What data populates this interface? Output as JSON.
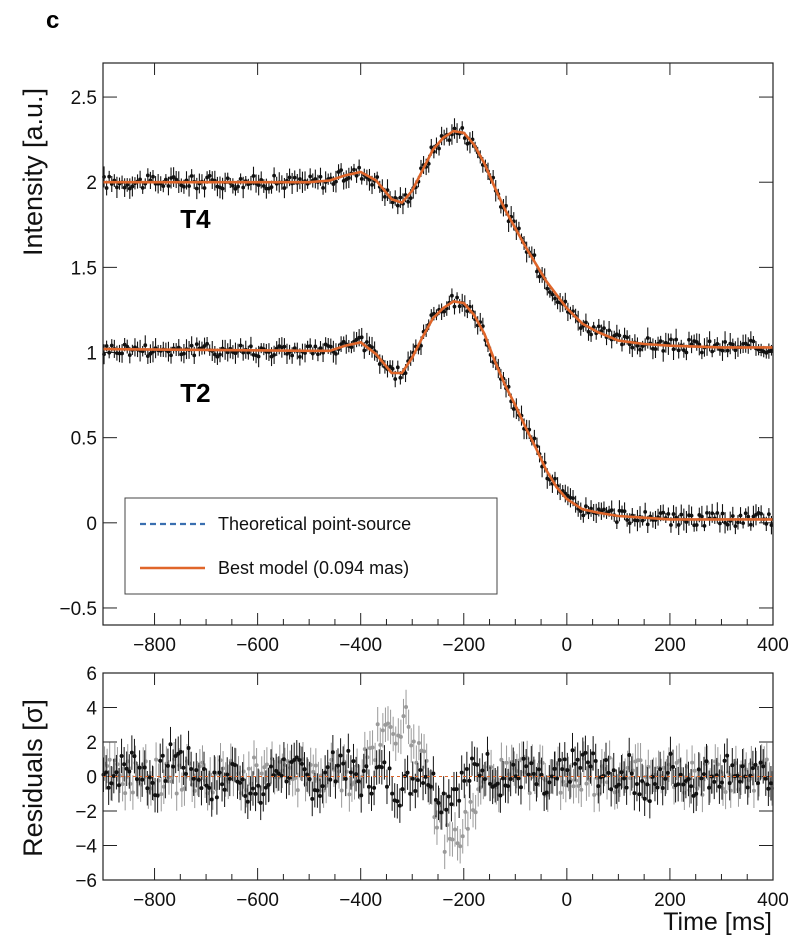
{
  "panel_label": "c",
  "colors": {
    "data_points": "#111111",
    "data_points_alt": "#9a9a9a",
    "theory": "#3a6fb0",
    "best_model": "#e0662a",
    "residual_zero": "#e0662a"
  },
  "chart_data": [
    {
      "type": "line",
      "ylabel": "Intensity [a.u.]",
      "xlabel": "",
      "xlim": [
        -900,
        400
      ],
      "ylim": [
        -0.6,
        2.7
      ],
      "xticks": [
        -800,
        -600,
        -400,
        -200,
        0,
        200,
        400
      ],
      "xtick_labels": [
        "−800",
        "−600",
        "−400",
        "−200",
        "0",
        "200",
        "400"
      ],
      "yticks": [
        -0.5,
        0,
        0.5,
        1,
        1.5,
        2,
        2.5
      ],
      "ytick_labels": [
        "−0.5",
        "0",
        "0.5",
        "1",
        "1.5",
        "2",
        "2.5"
      ],
      "grid": false,
      "legend_position": "bottom-left",
      "annotations": [
        {
          "text": "T4",
          "x": -750,
          "y": 1.73
        },
        {
          "text": "T2",
          "x": -750,
          "y": 0.71
        }
      ],
      "legend": [
        {
          "label": "Theoretical point-source",
          "style": "dashed"
        },
        {
          "label": "Best model (0.094 mas)",
          "style": "solid"
        }
      ],
      "series": [
        {
          "name": "T4",
          "x": [
            -900,
            -500,
            -460,
            -430,
            -400,
            -370,
            -340,
            -320,
            -300,
            -280,
            -260,
            -240,
            -220,
            -200,
            -180,
            -160,
            -140,
            -120,
            -100,
            -80,
            -60,
            -40,
            -20,
            0,
            30,
            60,
            100,
            150,
            200,
            300,
            400
          ],
          "y": [
            2.0,
            2.0,
            2.01,
            2.04,
            2.06,
            2.01,
            1.9,
            1.88,
            1.95,
            2.07,
            2.19,
            2.26,
            2.3,
            2.29,
            2.22,
            2.11,
            1.97,
            1.84,
            1.73,
            1.62,
            1.52,
            1.42,
            1.34,
            1.26,
            1.17,
            1.12,
            1.07,
            1.05,
            1.04,
            1.03,
            1.03
          ]
        },
        {
          "name": "T2",
          "x": [
            -900,
            -500,
            -460,
            -430,
            -400,
            -370,
            -340,
            -320,
            -300,
            -280,
            -260,
            -240,
            -220,
            -200,
            -180,
            -160,
            -140,
            -120,
            -100,
            -80,
            -60,
            -40,
            -20,
            0,
            30,
            60,
            100,
            150,
            200,
            300,
            400
          ],
          "y": [
            1.02,
            1.01,
            1.01,
            1.04,
            1.06,
            0.99,
            0.88,
            0.88,
            0.97,
            1.09,
            1.2,
            1.26,
            1.3,
            1.29,
            1.22,
            1.11,
            0.95,
            0.81,
            0.69,
            0.56,
            0.44,
            0.31,
            0.21,
            0.14,
            0.08,
            0.06,
            0.04,
            0.03,
            0.02,
            0.02,
            0.02
          ]
        }
      ]
    },
    {
      "type": "scatter",
      "ylabel": "Residuals [σ]",
      "xlabel": "Time [ms]",
      "xlim": [
        -900,
        400
      ],
      "ylim": [
        -6,
        6
      ],
      "xticks": [
        -800,
        -600,
        -400,
        -200,
        0,
        200,
        400
      ],
      "xtick_labels": [
        "−800",
        "−600",
        "−400",
        "−200",
        "0",
        "200",
        "400"
      ],
      "yticks": [
        -6,
        -4,
        -2,
        0,
        2,
        4,
        6
      ],
      "ytick_labels": [
        "−6",
        "−4",
        "−2",
        "0",
        "2",
        "4",
        "6"
      ],
      "grid": false,
      "series": [
        {
          "name": "best model residuals",
          "x": [
            -880,
            -840,
            -800,
            -760,
            -720,
            -680,
            -640,
            -600,
            -560,
            -520,
            -480,
            -440,
            -400,
            -360,
            -320,
            -280,
            -240,
            -200,
            -160,
            -120,
            -80,
            -40,
            0,
            40,
            80,
            120,
            160,
            200,
            240,
            280,
            320,
            360,
            400
          ],
          "y": [
            0.2,
            1.5,
            -0.8,
            2.3,
            0.5,
            -1.2,
            0.8,
            -2.5,
            1.1,
            0.2,
            -1.0,
            1.8,
            -0.6,
            0.4,
            -1.4,
            0.9,
            -2.1,
            -0.3,
            1.2,
            -0.7,
            0.5,
            -1.6,
            0.8,
            1.4,
            -0.2,
            0.6,
            -1.8,
            0.9,
            -0.4,
            0.3,
            1.0,
            -0.5,
            0.4
          ]
        },
        {
          "name": "theoretical point-source residuals",
          "x": [
            -400,
            -380,
            -360,
            -340,
            -320,
            -300,
            -280,
            -260,
            -240,
            -220,
            -200,
            -180,
            -160
          ],
          "y": [
            0.5,
            1.5,
            2.2,
            2.8,
            3.2,
            2.6,
            0.8,
            -1.5,
            -3.2,
            -3.8,
            -3.0,
            -1.8,
            -0.5
          ]
        }
      ]
    }
  ]
}
